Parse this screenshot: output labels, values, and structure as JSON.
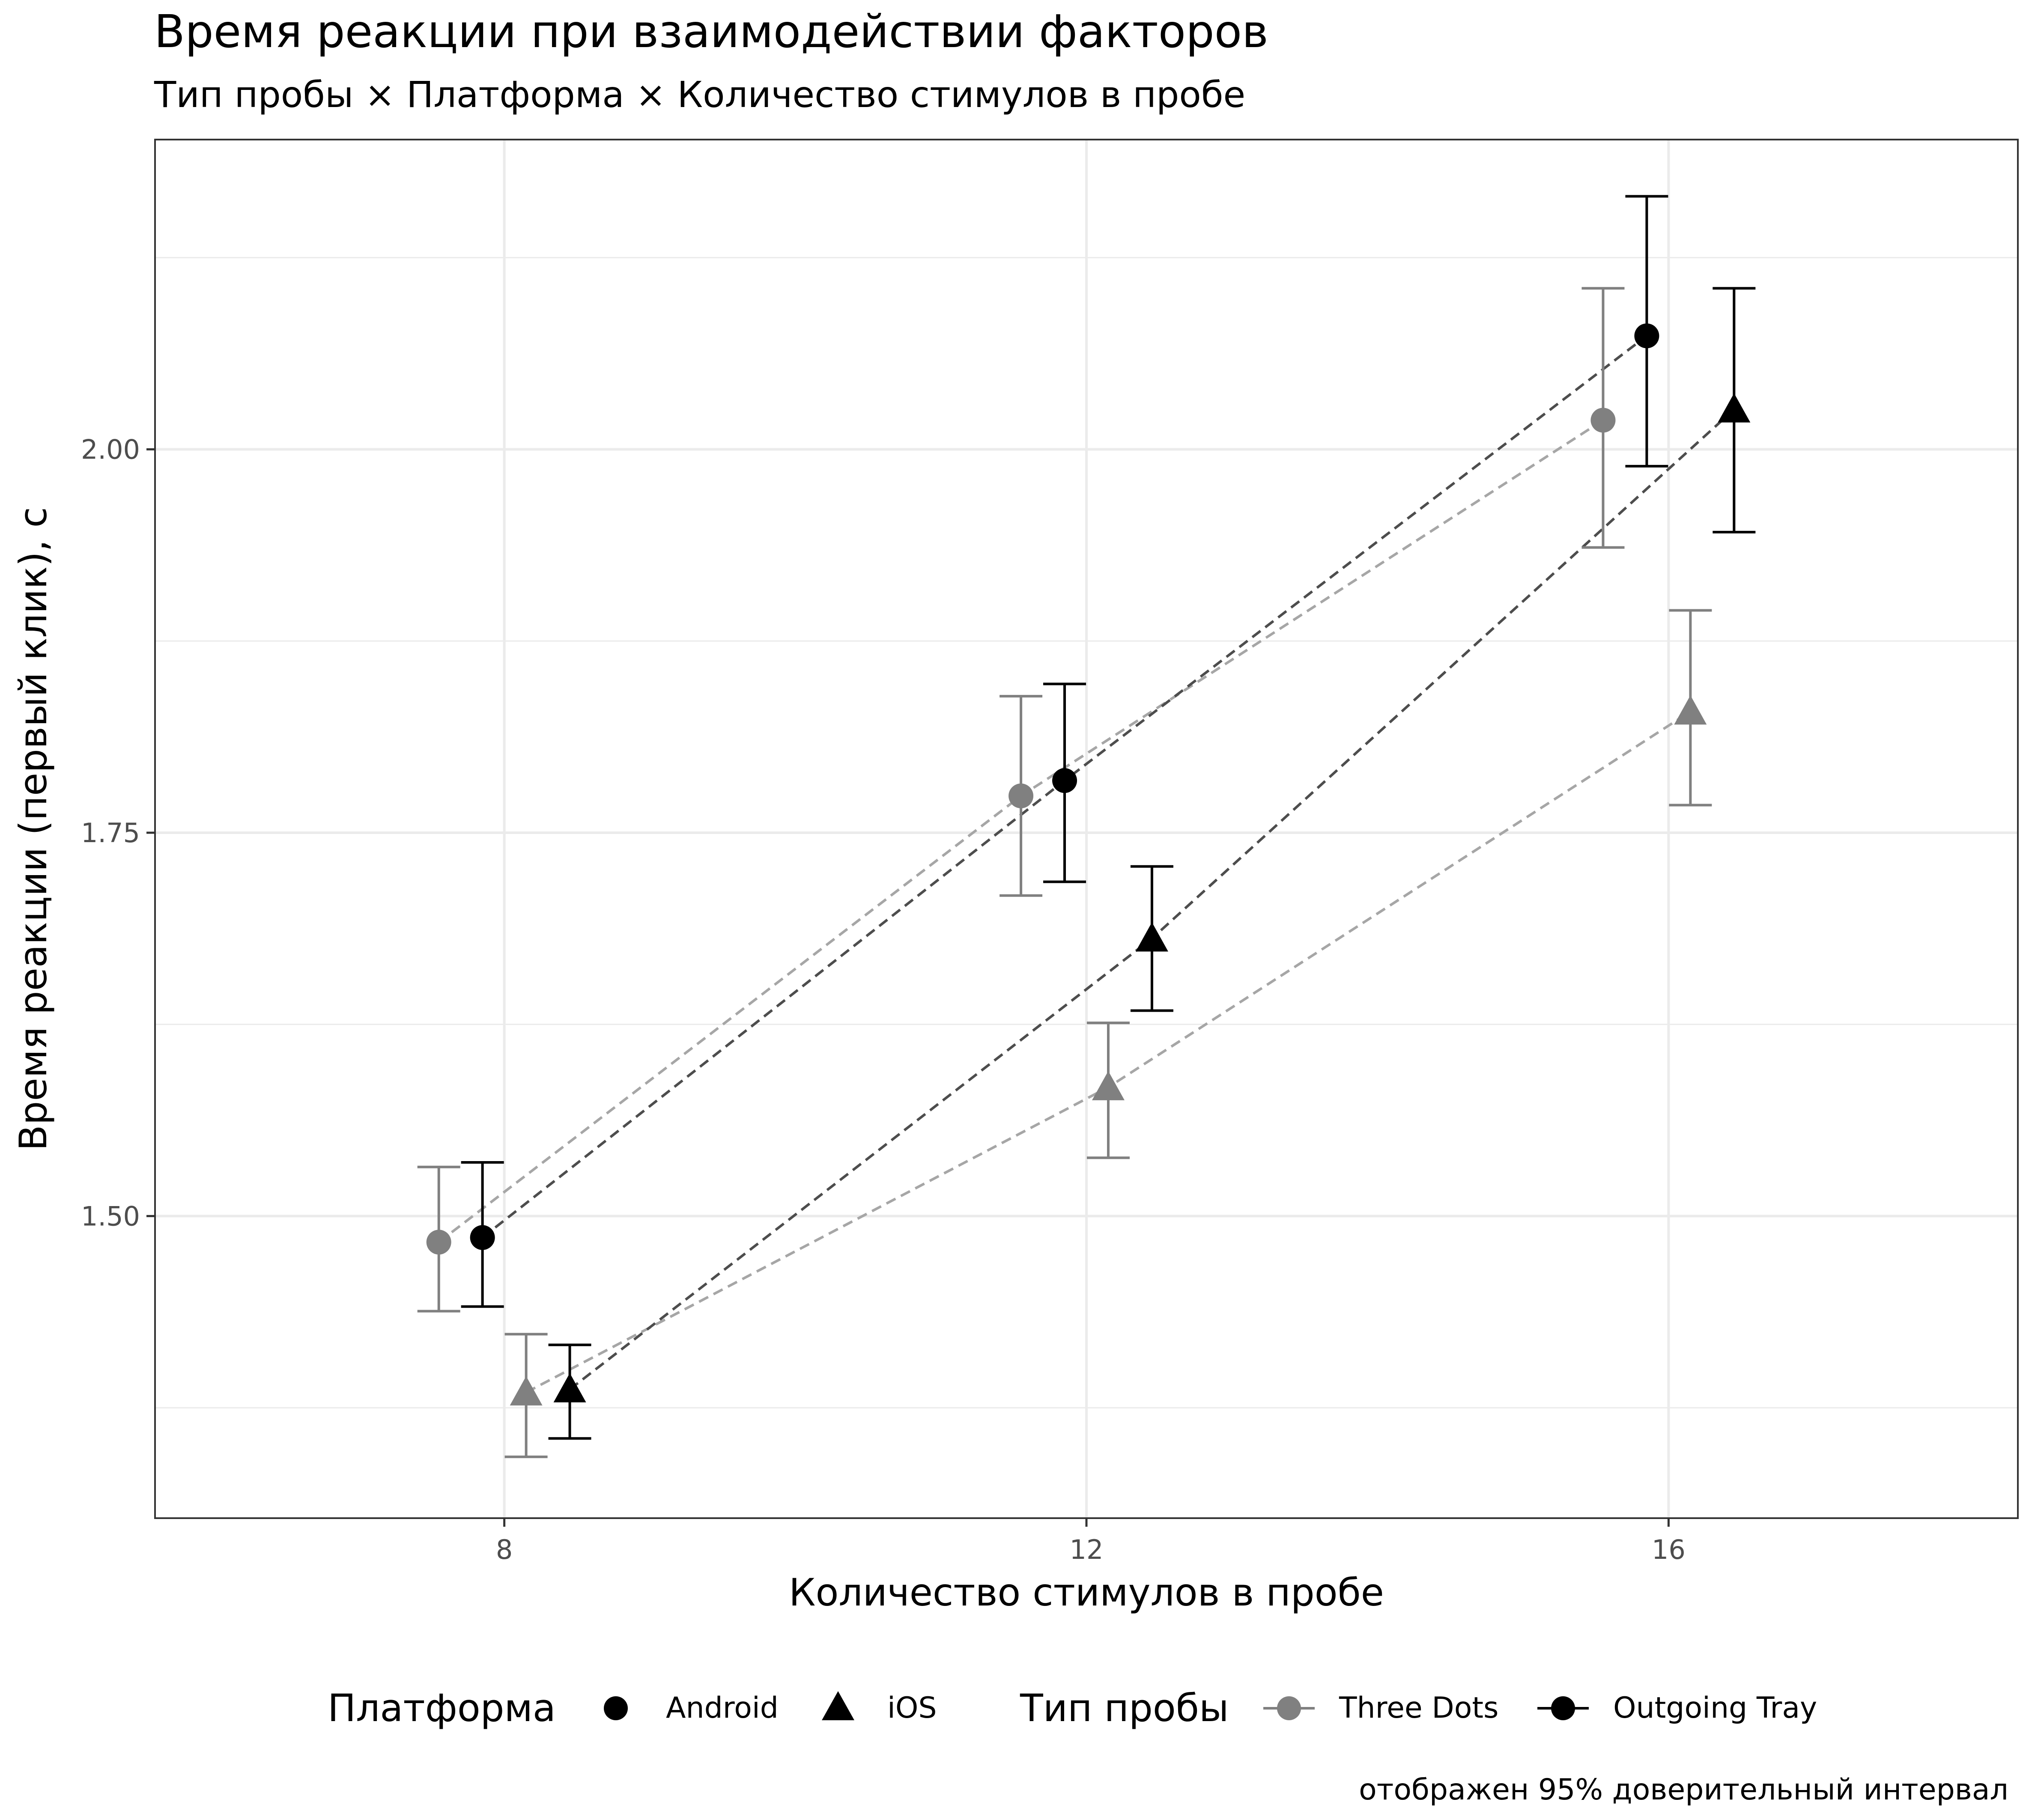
{
  "chart_data": {
    "type": "scatter",
    "title": "Время реакции при взаимодействии факторов",
    "subtitle": "Тип пробы × Платформа × Количество стимулов в пробе",
    "xlabel": "Количество стимулов в пробе",
    "ylabel": "Время реакции (первый клик), с",
    "caption": "отображен 95% доверительный интервал",
    "xlim": [
      5.6,
      18.4
    ],
    "ylim": [
      1.303,
      2.202
    ],
    "x_ticks": [
      8,
      12,
      16
    ],
    "x_tick_labels": [
      "8",
      "12",
      "16"
    ],
    "y_ticks": [
      1.5,
      1.75,
      2.0
    ],
    "y_tick_labels": [
      "1.50",
      "1.75",
      "2.00"
    ],
    "y_minor_ticks": [
      1.375,
      1.625,
      1.875,
      2.125
    ],
    "grid": true,
    "legend_position": "bottom",
    "legend": {
      "platform_title": "Платформа",
      "platform_items": [
        {
          "label": "Android",
          "shape": "circle"
        },
        {
          "label": "iOS",
          "shape": "triangle"
        }
      ],
      "type_title": "Тип пробы",
      "type_items": [
        {
          "label": "Three Dots",
          "color": "#808080"
        },
        {
          "label": "Outgoing Tray",
          "color": "#000000"
        }
      ]
    },
    "series": [
      {
        "type": "Three Dots",
        "platform": "Android",
        "shape": "circle",
        "color": "#808080",
        "line_color": "#a6a6a6",
        "points": [
          {
            "x": 7.55,
            "y": 1.483,
            "lo": 1.438,
            "hi": 1.532
          },
          {
            "x": 11.55,
            "y": 1.774,
            "lo": 1.709,
            "hi": 1.839
          },
          {
            "x": 15.55,
            "y": 2.019,
            "lo": 1.936,
            "hi": 2.105
          }
        ]
      },
      {
        "type": "Outgoing Tray",
        "platform": "Android",
        "shape": "circle",
        "color": "#000000",
        "line_color": "#4d4d4d",
        "points": [
          {
            "x": 7.85,
            "y": 1.486,
            "lo": 1.441,
            "hi": 1.535
          },
          {
            "x": 11.85,
            "y": 1.784,
            "lo": 1.718,
            "hi": 1.847
          },
          {
            "x": 15.85,
            "y": 2.074,
            "lo": 1.989,
            "hi": 2.165
          }
        ]
      },
      {
        "type": "Three Dots",
        "platform": "iOS",
        "shape": "triangle",
        "color": "#808080",
        "line_color": "#a6a6a6",
        "points": [
          {
            "x": 8.15,
            "y": 1.385,
            "lo": 1.343,
            "hi": 1.423
          },
          {
            "x": 12.15,
            "y": 1.584,
            "lo": 1.538,
            "hi": 1.626
          },
          {
            "x": 16.15,
            "y": 1.829,
            "lo": 1.768,
            "hi": 1.895
          }
        ]
      },
      {
        "type": "Outgoing Tray",
        "platform": "iOS",
        "shape": "triangle",
        "color": "#000000",
        "line_color": "#4d4d4d",
        "points": [
          {
            "x": 8.45,
            "y": 1.387,
            "lo": 1.355,
            "hi": 1.416
          },
          {
            "x": 12.45,
            "y": 1.681,
            "lo": 1.634,
            "hi": 1.728
          },
          {
            "x": 16.45,
            "y": 2.026,
            "lo": 1.946,
            "hi": 2.105
          }
        ]
      }
    ]
  }
}
